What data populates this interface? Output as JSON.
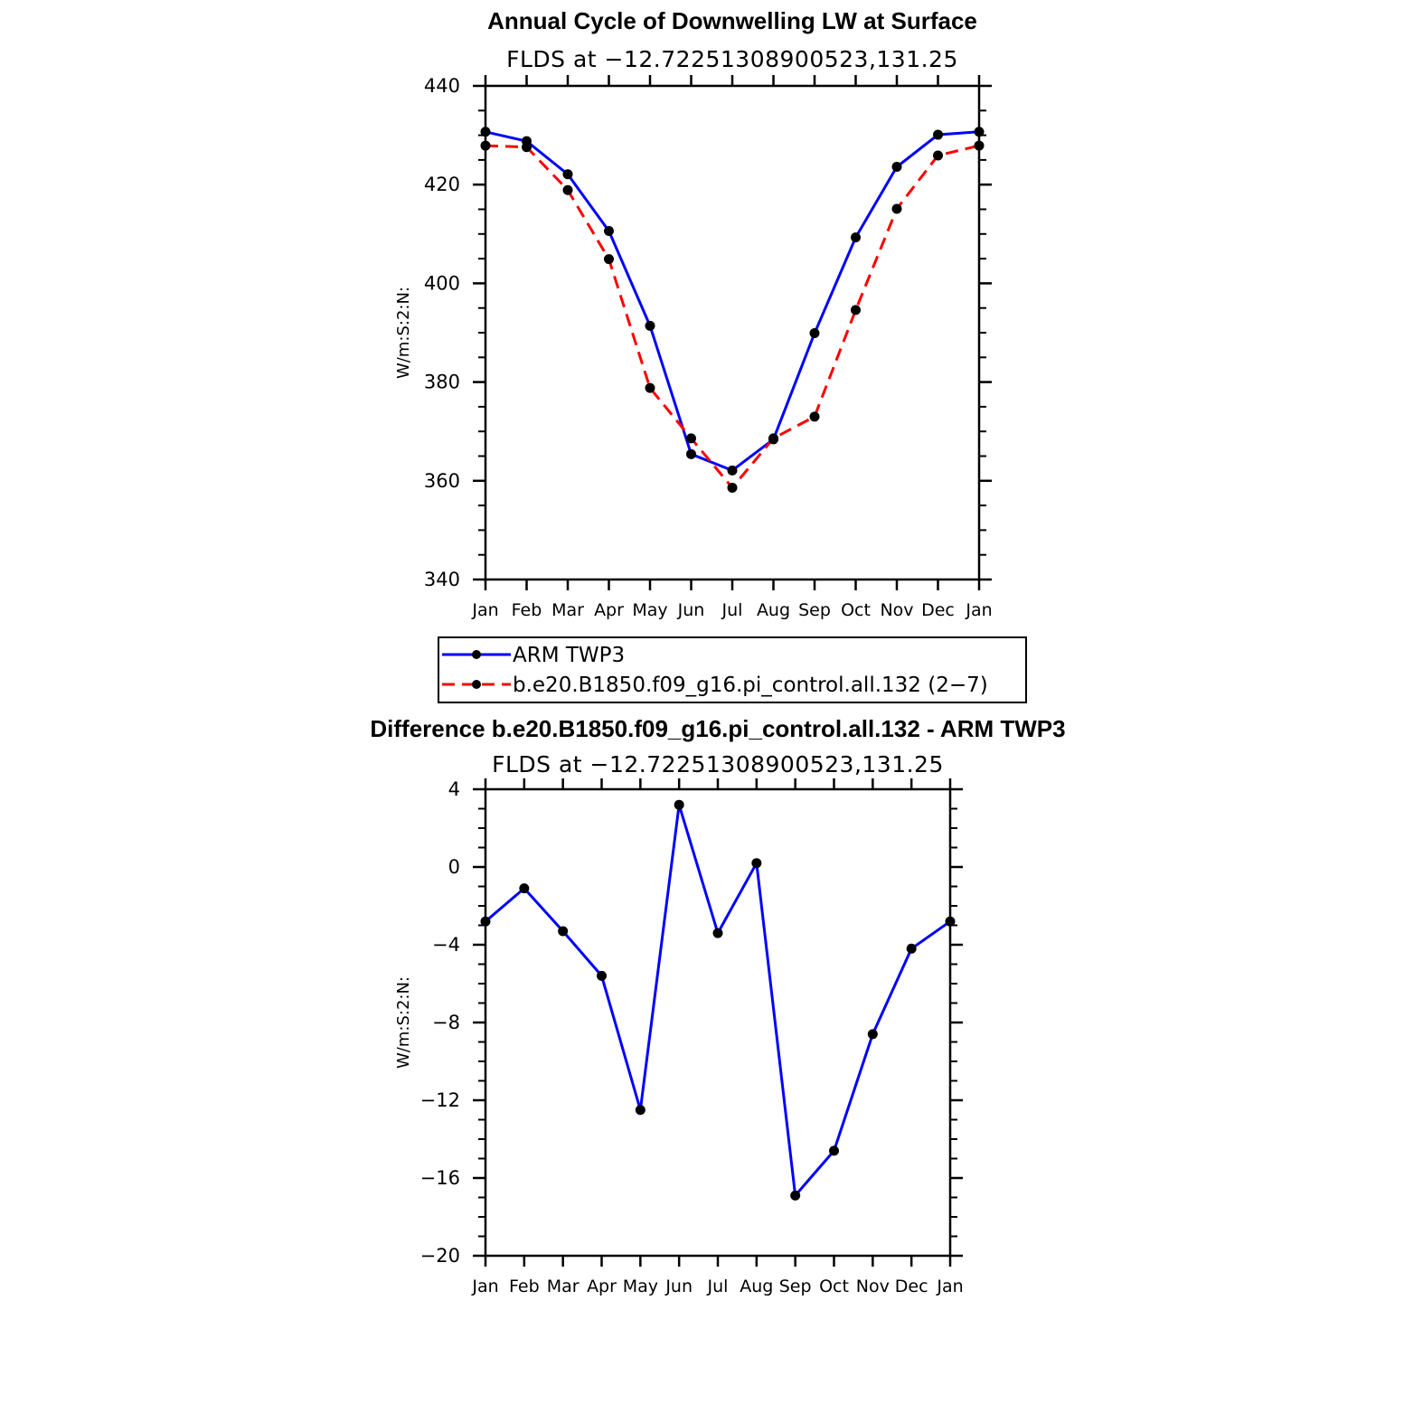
{
  "chart_data": [
    {
      "type": "line",
      "title": "Annual Cycle of Downwelling LW at Surface",
      "subtitle": "FLDS at −12.72251308900523,131.25",
      "xlabel": "",
      "ylabel": "W/m:S:2:N:",
      "categories": [
        "Jan",
        "Feb",
        "Mar",
        "Apr",
        "May",
        "Jun",
        "Jul",
        "Aug",
        "Sep",
        "Oct",
        "Nov",
        "Dec",
        "Jan"
      ],
      "ylim": [
        340,
        440
      ],
      "yticks": [
        340,
        360,
        380,
        400,
        420,
        440
      ],
      "ytick_labels": [
        "340",
        "360",
        "380",
        "400",
        "420",
        "440"
      ],
      "series": [
        {
          "name": "ARM TWP3",
          "color": "#0000ff",
          "dash": "solid",
          "values": [
            430.7,
            428.8,
            422.1,
            410.6,
            391.4,
            365.4,
            362.1,
            368.4,
            389.9,
            409.3,
            423.6,
            430.1,
            430.7
          ]
        },
        {
          "name": "b.e20.B1850.f09_g16.pi_control.all.132 (2−7)",
          "color": "#ff0000",
          "dash": "dashed",
          "values": [
            427.9,
            427.6,
            418.9,
            404.9,
            378.8,
            368.6,
            358.6,
            368.6,
            373.0,
            394.6,
            415.1,
            425.9,
            427.9
          ]
        }
      ],
      "legend": {
        "position": "below",
        "entries": [
          "ARM TWP3",
          "b.e20.B1850.f09_g16.pi_control.all.132 (2−7)"
        ]
      }
    },
    {
      "type": "line",
      "title": "Difference b.e20.B1850.f09_g16.pi_control.all.132 - ARM TWP3",
      "subtitle": "FLDS at −12.72251308900523,131.25",
      "xlabel": "",
      "ylabel": "W/m:S:2:N:",
      "categories": [
        "Jan",
        "Feb",
        "Mar",
        "Apr",
        "May",
        "Jun",
        "Jul",
        "Aug",
        "Sep",
        "Oct",
        "Nov",
        "Dec",
        "Jan"
      ],
      "ylim": [
        -20,
        4
      ],
      "yticks": [
        -20,
        -16,
        -12,
        -8,
        -4,
        0,
        4
      ],
      "ytick_labels": [
        "−20",
        "−16",
        "−12",
        "−8",
        "−4",
        "0",
        "4"
      ],
      "series": [
        {
          "name": "Difference",
          "color": "#0000ff",
          "dash": "solid",
          "values": [
            -2.8,
            -1.1,
            -3.3,
            -5.6,
            -12.5,
            3.2,
            -3.4,
            0.2,
            -16.9,
            -14.6,
            -8.6,
            -4.2,
            -2.8
          ]
        }
      ]
    }
  ]
}
